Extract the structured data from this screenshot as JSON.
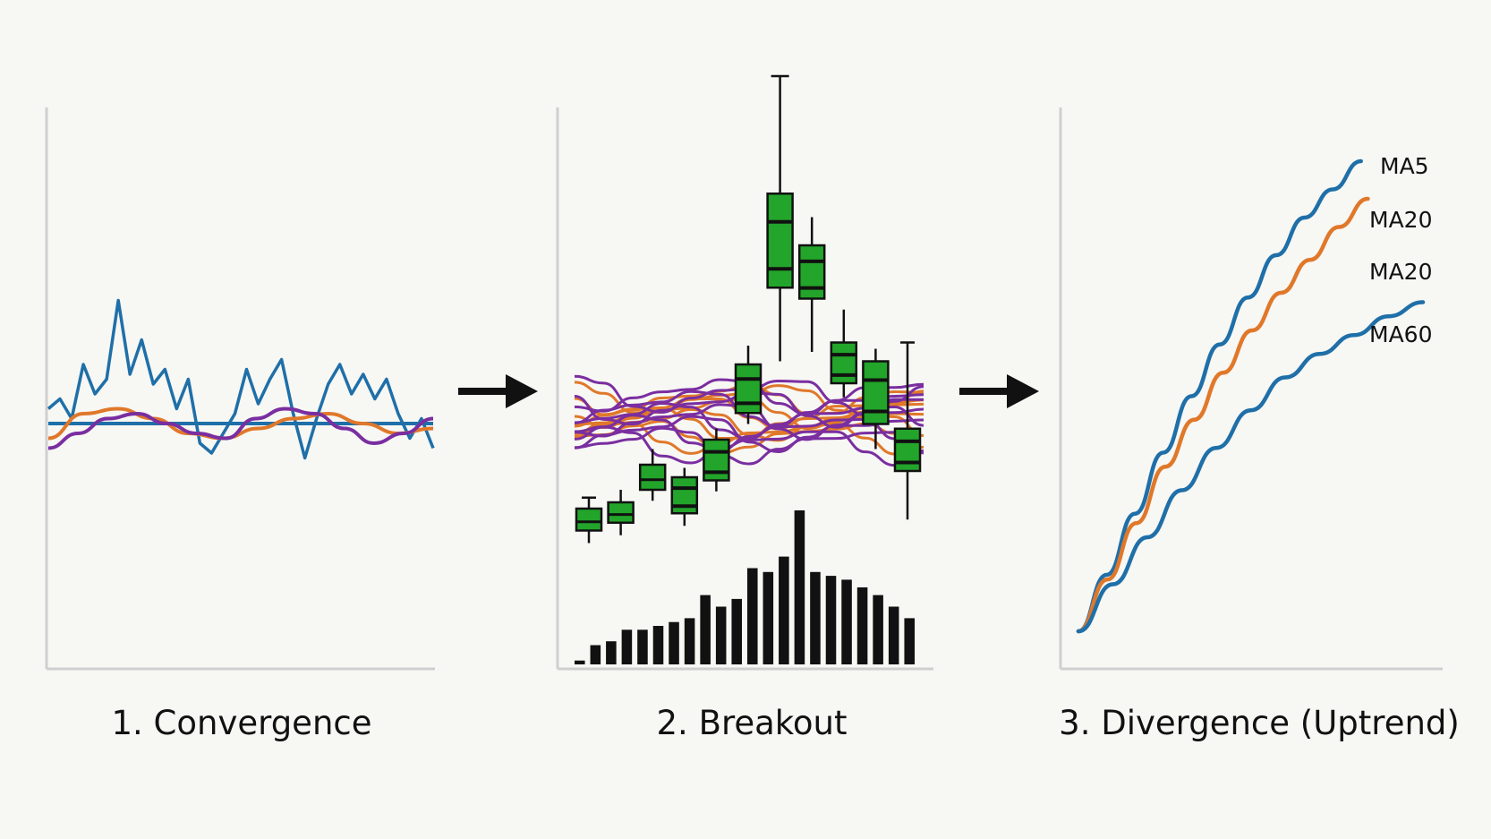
{
  "colors": {
    "blue": "#1f6fa8",
    "orange": "#e0782a",
    "purple": "#7a2ea0",
    "candle_green": "#22a52a",
    "volume_black": "#111111",
    "axis": "#cfcfcf",
    "arrow": "#111111"
  },
  "panels": {
    "convergence": {
      "caption": "1. Convergence",
      "chart_data": {
        "type": "line",
        "series": [
          {
            "color": "blue",
            "values": [
              0.3,
              0.5,
              0.1,
              1.2,
              0.6,
              0.9,
              2.5,
              1.0,
              1.7,
              0.8,
              1.1,
              0.3,
              0.9,
              -0.4,
              -0.6,
              -0.2,
              0.2,
              1.1,
              0.4,
              0.9,
              1.3,
              0.2,
              -0.7,
              0.1,
              0.8,
              1.2,
              0.6,
              1.0,
              0.5,
              0.9,
              0.2,
              -0.3,
              0.1,
              -0.5
            ]
          },
          {
            "color": "blue",
            "values": [
              0.0,
              0.0
            ]
          },
          {
            "color": "orange",
            "values": [
              -0.3,
              0.2,
              0.3,
              0.1,
              -0.2,
              -0.3,
              -0.1,
              0.1,
              0.2,
              0.0,
              -0.2,
              -0.1
            ]
          },
          {
            "color": "purple",
            "values": [
              -0.5,
              -0.2,
              0.1,
              0.2,
              0.0,
              -0.2,
              -0.3,
              0.1,
              0.3,
              0.2,
              -0.1,
              -0.4,
              -0.2,
              0.1
            ]
          }
        ]
      }
    },
    "breakout": {
      "caption": "2. Breakout",
      "chart_data": {
        "type": "candlestick",
        "candles": [
          {
            "open": 1.0,
            "close": 2.4,
            "high": 3.1,
            "low": 0.2
          },
          {
            "open": 1.5,
            "close": 2.8,
            "high": 3.6,
            "low": 0.7
          },
          {
            "open": 3.6,
            "close": 5.2,
            "high": 6.2,
            "low": 2.9
          },
          {
            "open": 2.1,
            "close": 4.4,
            "high": 5.0,
            "low": 1.3
          },
          {
            "open": 4.2,
            "close": 6.8,
            "high": 7.5,
            "low": 3.5
          },
          {
            "open": 8.5,
            "close": 11.6,
            "high": 12.8,
            "low": 7.8
          },
          {
            "open": 16.5,
            "close": 22.5,
            "high": 30.0,
            "low": 11.8
          },
          {
            "open": 15.8,
            "close": 19.2,
            "high": 21.0,
            "low": 12.4
          },
          {
            "open": 10.4,
            "close": 13.0,
            "high": 15.1,
            "low": 9.5
          },
          {
            "open": 7.8,
            "close": 11.8,
            "high": 12.6,
            "low": 6.2
          },
          {
            "open": 4.8,
            "close": 7.5,
            "high": 13.0,
            "low": 1.7
          }
        ],
        "volume": [
          1,
          5,
          6,
          9,
          9,
          10,
          11,
          12,
          18,
          15,
          17,
          25,
          24,
          28,
          40,
          24,
          23,
          22,
          20,
          18,
          15,
          12
        ],
        "ma_bands": {
          "orange_lines": 8,
          "purple_lines": 10
        }
      }
    },
    "divergence": {
      "caption": "3. Divergence (Uptrend)",
      "chart_data": {
        "type": "line",
        "x": [
          0,
          1,
          2,
          3,
          4,
          5,
          6,
          7,
          8,
          9,
          10
        ],
        "series": [
          {
            "name": "MA5",
            "color": "blue",
            "values": [
              0,
              12,
              25,
              38,
              50,
              61,
              71,
              80,
              88,
              94,
              100
            ]
          },
          {
            "name": "MA20",
            "color": "orange",
            "values": [
              0,
              11,
              23,
              35,
              45,
              55,
              64,
              72,
              79,
              86,
              92
            ]
          },
          {
            "name": "MA60",
            "color": "blue",
            "values": [
              0,
              10,
              20,
              30,
              39,
              47,
              54,
              59,
              63,
              67,
              70
            ]
          }
        ],
        "labels": [
          "MA5",
          "MA20",
          "MA20",
          "MA60"
        ]
      }
    }
  }
}
